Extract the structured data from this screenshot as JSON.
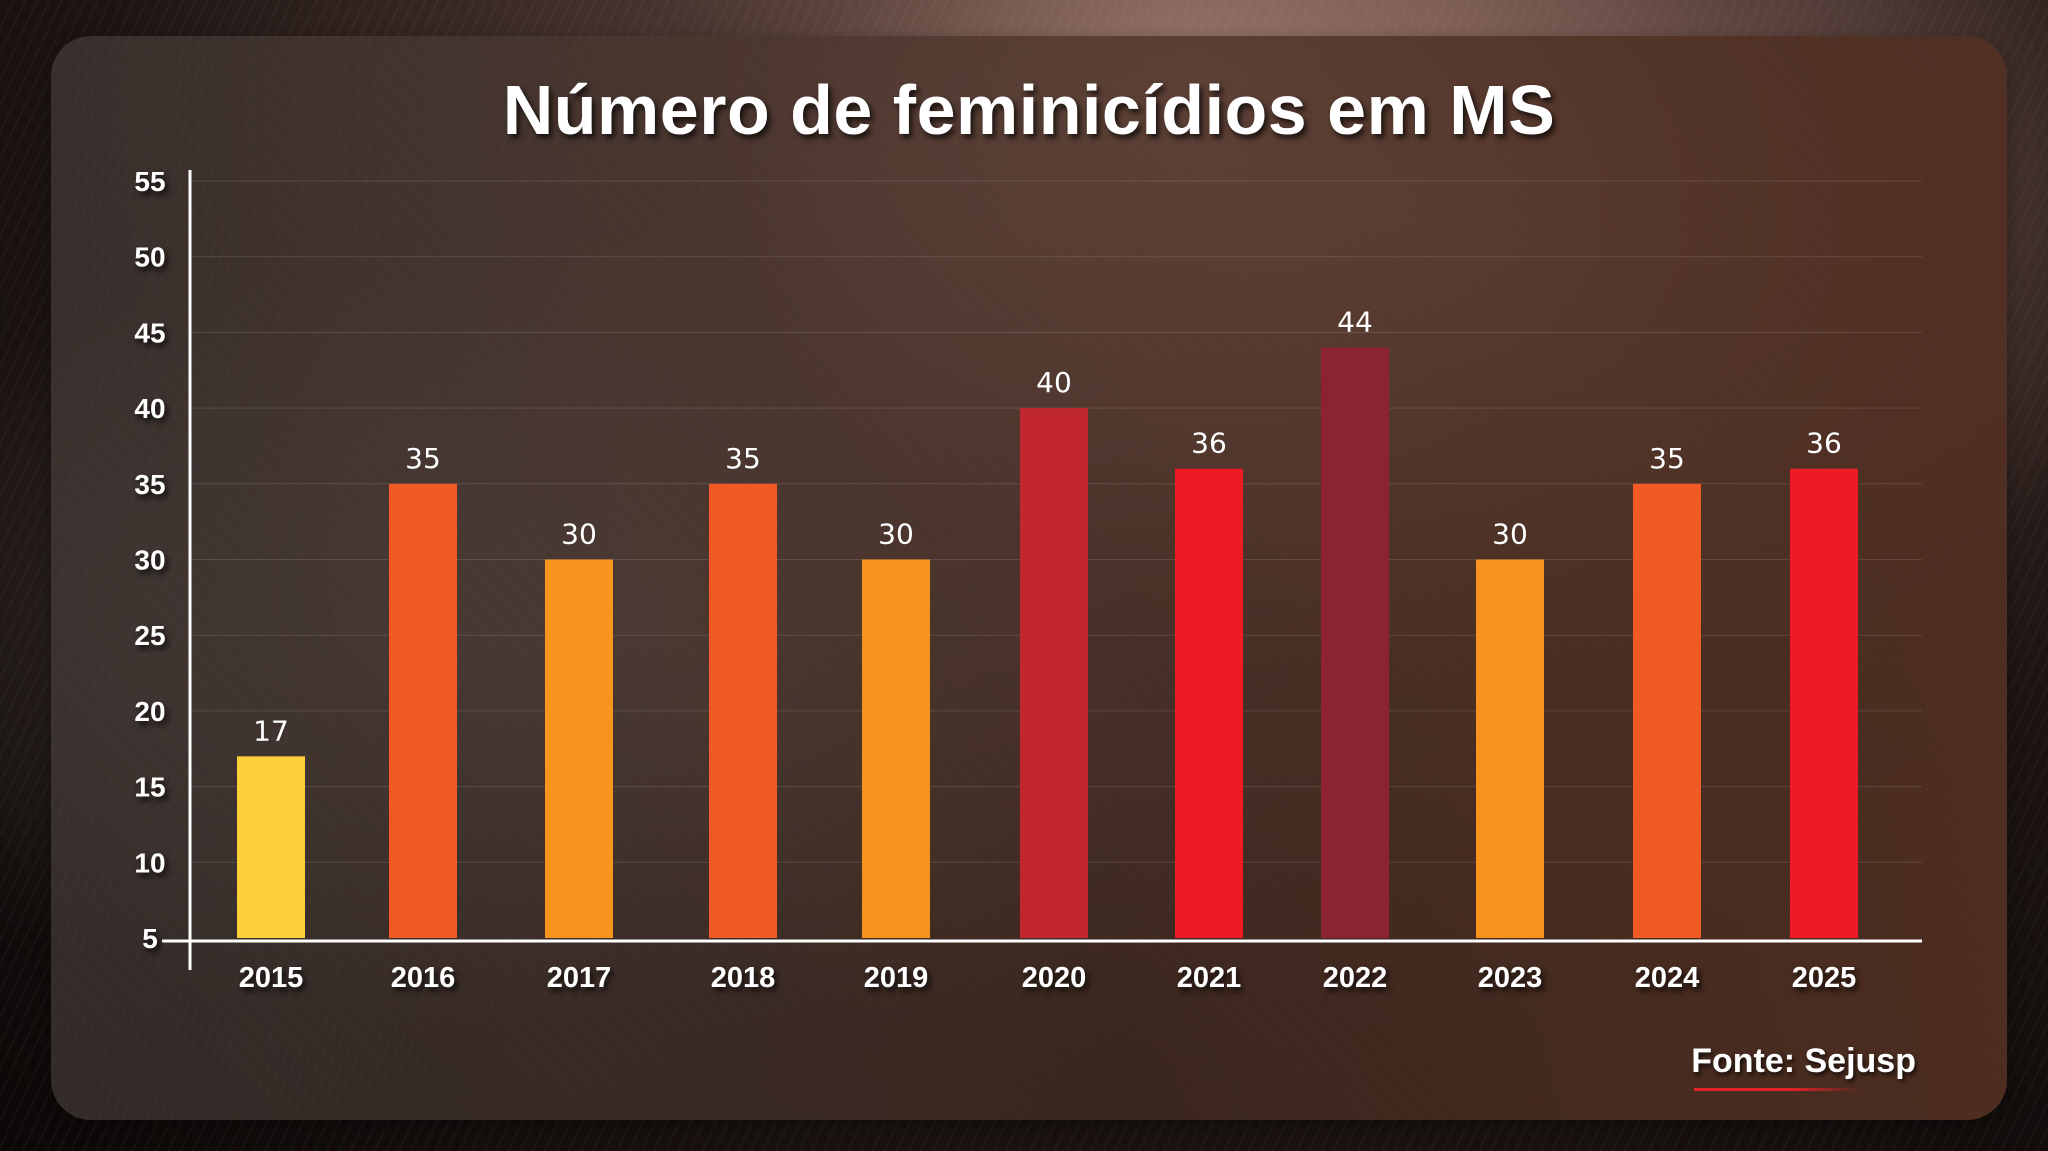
{
  "chart_data": {
    "type": "bar",
    "title": "Número de feminicídios em MS",
    "categories": [
      "2015",
      "2016",
      "2017",
      "2018",
      "2019",
      "2020",
      "2021",
      "2022",
      "2023",
      "2024",
      "2025"
    ],
    "values": [
      17,
      35,
      30,
      35,
      30,
      40,
      36,
      44,
      30,
      35,
      36
    ],
    "bar_colors": [
      "#fbd038",
      "#f15a24",
      "#f7941d",
      "#f15a24",
      "#f7941d",
      "#c1272d",
      "#ed1c24",
      "#8b2331",
      "#f7941d",
      "#f15a24",
      "#ed1c24"
    ],
    "yticks": [
      5,
      10,
      15,
      20,
      25,
      30,
      35,
      40,
      45,
      50,
      55
    ],
    "ylim": [
      5,
      55
    ],
    "xlabel": "",
    "ylabel": "",
    "grid": true,
    "legend": "none"
  },
  "source": "Fonte: Sejusp"
}
